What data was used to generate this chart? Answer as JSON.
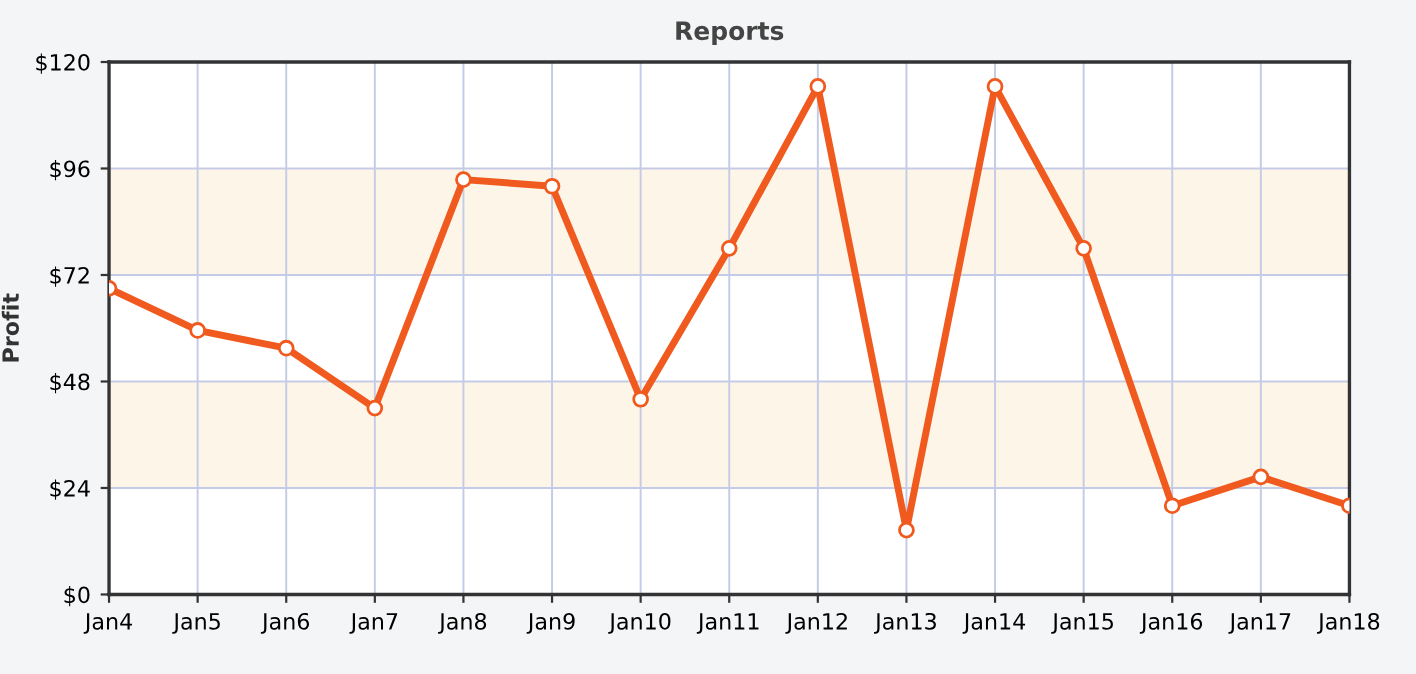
{
  "chart_data": {
    "type": "line",
    "title": "Reports",
    "ylabel": "Profit",
    "categories": [
      "Jan4",
      "Jan5",
      "Jan6",
      "Jan7",
      "Jan8",
      "Jan9",
      "Jan10",
      "Jan11",
      "Jan12",
      "Jan13",
      "Jan14",
      "Jan15",
      "Jan16",
      "Jan17",
      "Jan18"
    ],
    "series": [
      {
        "color": "#f05a1e",
        "values": [
          69,
          59.5,
          55.5,
          42,
          93.5,
          92,
          44,
          78,
          114.5,
          14.5,
          114.5,
          78,
          20,
          26.5,
          20
        ]
      }
    ],
    "ylim": [
      0,
      120
    ],
    "yticks": [
      {
        "value": 0,
        "label": "$0"
      },
      {
        "value": 24,
        "label": "$24"
      },
      {
        "value": 48,
        "label": "$48"
      },
      {
        "value": 72,
        "label": "$72"
      },
      {
        "value": 96,
        "label": "$96"
      },
      {
        "value": 120,
        "label": "$120"
      }
    ],
    "bands": [
      {
        "axis": "y",
        "from": 24,
        "to": 48,
        "color": "#fdf6e8"
      },
      {
        "axis": "y",
        "from": 72,
        "to": 96,
        "color": "#fdf6e8"
      }
    ],
    "grid": true,
    "marker": "circle",
    "line_style": "solid",
    "legend": false
  }
}
